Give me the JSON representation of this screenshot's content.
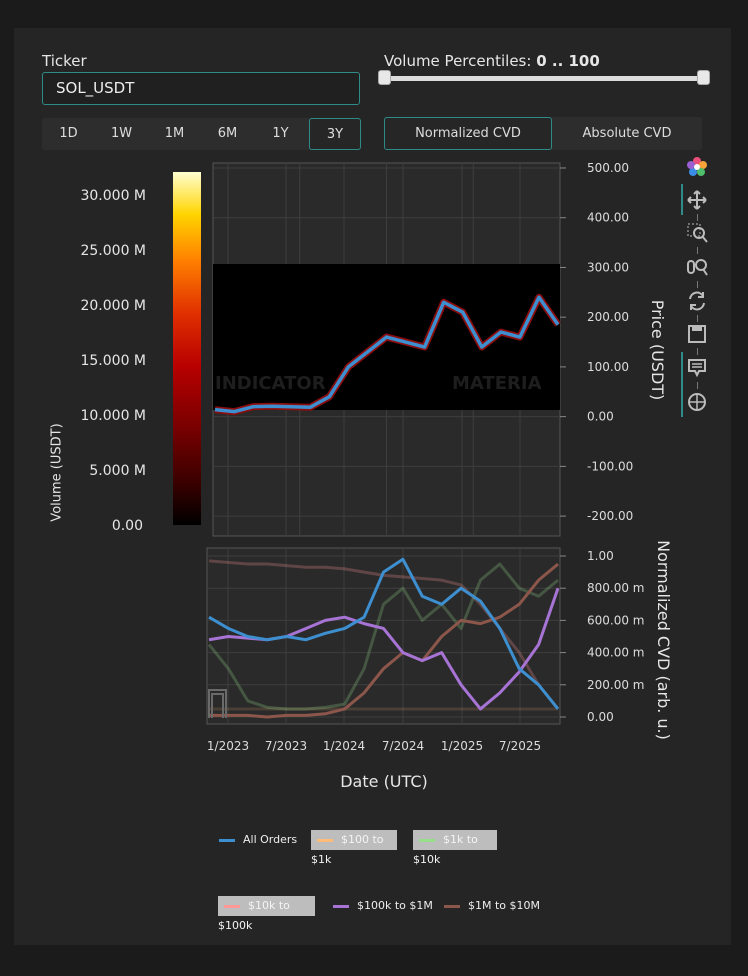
{
  "ticker": {
    "label": "Ticker",
    "value": "SOL_USDT"
  },
  "volume_percentiles": {
    "label": "Volume Percentiles:",
    "range_text": "0 .. 100",
    "low": 0,
    "high": 100
  },
  "timeframes": [
    "1D",
    "1W",
    "1M",
    "6M",
    "1Y",
    "3Y"
  ],
  "selected_timeframe": "3Y",
  "cvd_modes": [
    "Normalized CVD",
    "Absolute CVD"
  ],
  "selected_cvd_mode": "Normalized CVD",
  "toolbar_icons": [
    "bokeh-logo-icon",
    "pan-icon",
    "box-zoom-icon",
    "wheel-zoom-icon",
    "reset-icon",
    "save-icon",
    "hover-icon",
    "crosshair-icon"
  ],
  "colorbar": {
    "title": "Volume (USDT)",
    "ticks": [
      "30.000 M",
      "25.000 M",
      "20.000 M",
      "15.000 M",
      "10.000 M",
      "5.000 M",
      "0.00"
    ]
  },
  "watermark": {
    "left": "INDICATOR",
    "right": "MATERIA"
  },
  "colors": {
    "accent": "#2f8b88",
    "all_orders": "#3d8fcf",
    "c100_1k": "#ffbb78",
    "c1k_10k": "#98df8a",
    "c10k_100k": "#ff9896",
    "c100k_1m": "#a774d6",
    "c1m_10m": "#8c564b"
  },
  "chart_data": [
    {
      "type": "line",
      "name": "price",
      "ylabel": "Price (USDT)",
      "y_ticks": [
        "500.00",
        "400.00",
        "300.00",
        "200.00",
        "100.00",
        "0.00",
        "-100.00",
        "-200.00"
      ],
      "ylim": [
        -240,
        510
      ],
      "x": [
        "2022-11",
        "2023-01",
        "2023-03",
        "2023-05",
        "2023-07",
        "2023-09",
        "2023-11",
        "2024-01",
        "2024-03",
        "2024-05",
        "2024-07",
        "2024-09",
        "2024-11",
        "2025-01",
        "2025-03",
        "2025-05",
        "2025-07",
        "2025-09",
        "2025-10"
      ],
      "series": [
        {
          "values": [
            14,
            10,
            20,
            21,
            20,
            19,
            40,
            100,
            130,
            160,
            150,
            140,
            230,
            210,
            140,
            170,
            160,
            240,
            185
          ]
        }
      ]
    },
    {
      "type": "line",
      "name": "normalized-cvd",
      "ylabel": "Normalized CVD (arb. u.)",
      "xlabel": "Date (UTC)",
      "x_ticks": [
        "1/2023",
        "7/2023",
        "1/2024",
        "7/2024",
        "1/2025",
        "7/2025"
      ],
      "y_ticks": [
        "1.00",
        "800.00 m",
        "600.00 m",
        "400.00 m",
        "200.00 m",
        "0.00"
      ],
      "ylim": [
        -0.05,
        1.0
      ],
      "x": [
        "2022-11",
        "2023-01",
        "2023-03",
        "2023-05",
        "2023-07",
        "2023-09",
        "2023-11",
        "2024-01",
        "2024-03",
        "2024-05",
        "2024-07",
        "2024-09",
        "2024-11",
        "2025-01",
        "2025-03",
        "2025-05",
        "2025-07",
        "2025-09",
        "2025-10"
      ],
      "series": [
        {
          "name": "All Orders",
          "values": [
            0.62,
            0.55,
            0.5,
            0.48,
            0.5,
            0.48,
            0.52,
            0.55,
            0.62,
            0.9,
            0.98,
            0.75,
            0.7,
            0.8,
            0.72,
            0.55,
            0.3,
            0.2,
            0.05
          ]
        },
        {
          "name": "$100 to $1k",
          "values": [
            0.05,
            0.05,
            0.05,
            0.05,
            0.05,
            0.05,
            0.05,
            0.05,
            0.05,
            0.05,
            0.05,
            0.05,
            0.05,
            0.05,
            0.05,
            0.05,
            0.05,
            0.05,
            0.05
          ]
        },
        {
          "name": "$1k to $10k",
          "values": [
            0.45,
            0.3,
            0.1,
            0.06,
            0.05,
            0.05,
            0.06,
            0.08,
            0.3,
            0.7,
            0.8,
            0.6,
            0.7,
            0.55,
            0.85,
            0.95,
            0.8,
            0.75,
            0.85
          ]
        },
        {
          "name": "$10k to $100k",
          "values": [
            0.97,
            0.96,
            0.95,
            0.95,
            0.94,
            0.93,
            0.93,
            0.92,
            0.9,
            0.88,
            0.87,
            0.86,
            0.85,
            0.82,
            0.7,
            0.55,
            0.4,
            0.2,
            0.05
          ]
        },
        {
          "name": "$100k to $1M",
          "values": [
            0.48,
            0.5,
            0.49,
            0.48,
            0.5,
            0.55,
            0.6,
            0.62,
            0.58,
            0.55,
            0.4,
            0.35,
            0.4,
            0.2,
            0.05,
            0.15,
            0.28,
            0.45,
            0.8
          ]
        },
        {
          "name": "$1M to $10M",
          "values": [
            0.01,
            0.01,
            0.01,
            0.0,
            0.01,
            0.01,
            0.02,
            0.05,
            0.15,
            0.3,
            0.4,
            0.35,
            0.5,
            0.6,
            0.58,
            0.62,
            0.7,
            0.85,
            0.95
          ]
        }
      ]
    }
  ]
}
